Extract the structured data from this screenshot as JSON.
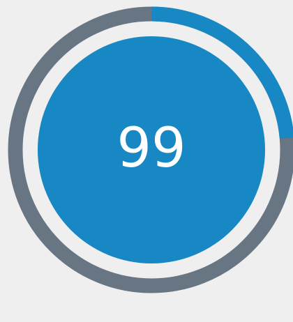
{
  "timer": {
    "label": "99"
  }
}
